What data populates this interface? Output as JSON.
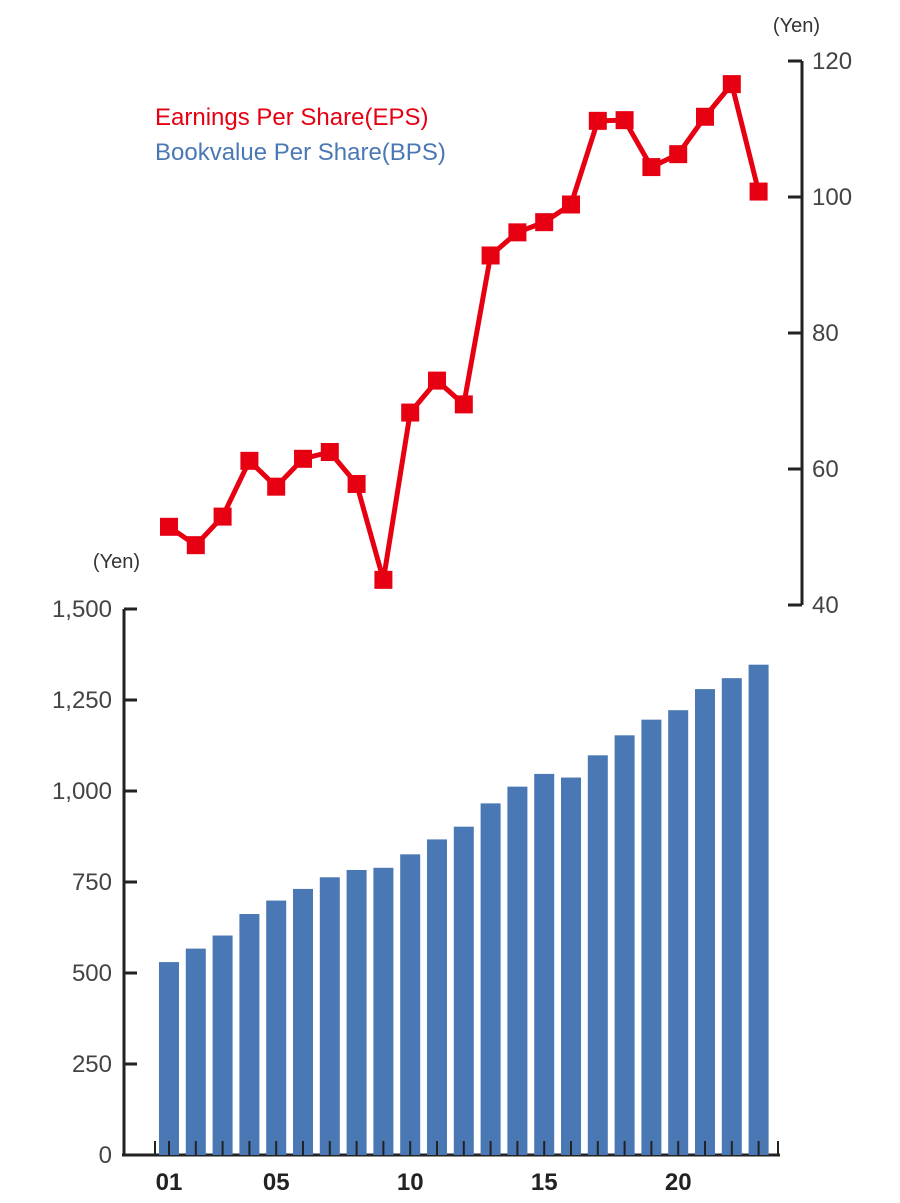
{
  "chart_data": [
    {
      "type": "line",
      "name": "Earnings Per Share(EPS)",
      "unit": "(Yen)",
      "color": "#e60012",
      "x": [
        1,
        2,
        3,
        4,
        5,
        6,
        7,
        8,
        9,
        10,
        11,
        12,
        13,
        14,
        15,
        16,
        17,
        18,
        19,
        20,
        21,
        22,
        23
      ],
      "values": [
        51.5,
        48.8,
        53.0,
        61.2,
        57.4,
        61.5,
        62.5,
        57.8,
        43.7,
        68.3,
        73.0,
        69.5,
        91.4,
        94.8,
        96.3,
        98.9,
        111.2,
        111.3,
        104.4,
        106.3,
        111.8,
        116.6,
        100.8
      ],
      "ylim": [
        40,
        120
      ],
      "yticks": [
        "40",
        "60",
        "80",
        "100",
        "120"
      ],
      "ytick_values": [
        40,
        60,
        80,
        100,
        120
      ]
    },
    {
      "type": "bar",
      "name": "Bookvalue Per Share(BPS)",
      "unit": "(Yen)",
      "color": "#4a78b5",
      "x": [
        1,
        2,
        3,
        4,
        5,
        6,
        7,
        8,
        9,
        10,
        11,
        12,
        13,
        14,
        15,
        16,
        17,
        18,
        19,
        20,
        21,
        22,
        23
      ],
      "values": [
        530,
        567,
        603,
        662,
        699,
        731,
        763,
        783,
        789,
        826,
        867,
        902,
        966,
        1012,
        1047,
        1037,
        1098,
        1153,
        1196,
        1222,
        1280,
        1310,
        1347
      ],
      "ylim": [
        0,
        1500
      ],
      "yticks": [
        "0",
        "250",
        "500",
        "750",
        "1,000",
        "1,250",
        "1,500"
      ],
      "ytick_values": [
        0,
        250,
        500,
        750,
        1000,
        1250,
        1500
      ],
      "xtick_labels": [
        "01",
        "05",
        "10",
        "15",
        "20"
      ],
      "xtick_values": [
        1,
        5,
        10,
        15,
        20
      ]
    }
  ],
  "legend": [
    {
      "label": "Earnings Per Share(EPS)",
      "color": "#e60012"
    },
    {
      "label": "Bookvalue Per Share(BPS)",
      "color": "#4a78b5"
    }
  ]
}
